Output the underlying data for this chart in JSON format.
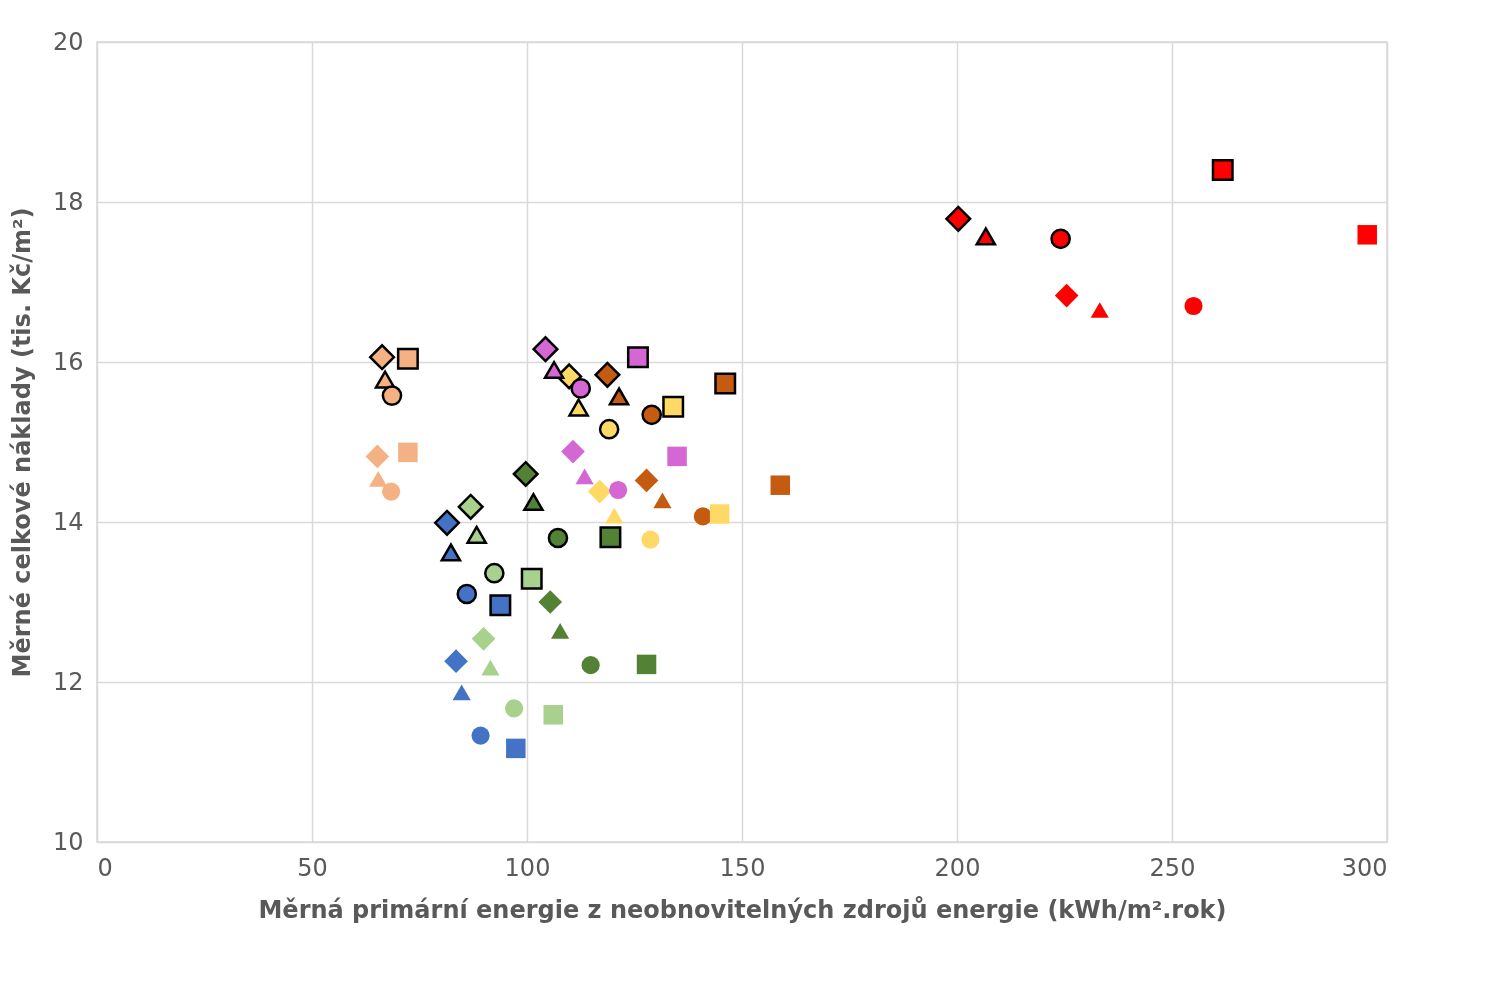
{
  "chart_data": {
    "type": "scatter",
    "xlabel": "Měrná primární energie z neobnovitelných zdrojů energie (kWh/m².rok)",
    "ylabel": "Měrné celkové náklady (tis. Kč/m²)",
    "xlim": [
      0,
      300
    ],
    "xticks": [
      0,
      50,
      100,
      150,
      200,
      250,
      300
    ],
    "ylim": [
      10,
      20
    ],
    "yticks": [
      10,
      12,
      14,
      16,
      18,
      20
    ],
    "grid": true,
    "series": [
      {
        "marker": "diamond",
        "color": "#000000",
        "colors": [
          "#f4b183",
          "#4472c4",
          "#a9d18e",
          "#548235",
          "#d467d4",
          "#ffd966",
          "#c55a11",
          "#ff0000"
        ],
        "x": [
          66.3,
          81.4,
          86.9,
          99.7,
          104.3,
          109.8,
          118.7,
          200.3
        ],
        "values": [
          16.06,
          13.99,
          14.19,
          14.6,
          16.16,
          15.82,
          15.84,
          17.79
        ]
      },
      {
        "marker": "triangle",
        "color": "#000000",
        "colors": [
          "#f4b183",
          "#4472c4",
          "#a9d18e",
          "#548235",
          "#d467d4",
          "#ffd966",
          "#c55a11",
          "#ff0000"
        ],
        "x": [
          67.0,
          82.3,
          88.3,
          101.5,
          106.3,
          112.0,
          121.4,
          206.7
        ],
        "values": [
          15.78,
          13.62,
          13.84,
          14.25,
          15.9,
          15.43,
          15.57,
          17.57
        ]
      },
      {
        "marker": "circle",
        "color": "#000000",
        "colors": [
          "#f4b183",
          "#4472c4",
          "#a9d18e",
          "#548235",
          "#d467d4",
          "#ffd966",
          "#c55a11",
          "#ff0000"
        ],
        "x": [
          68.6,
          86.0,
          92.4,
          107.2,
          112.5,
          119.1,
          129.0,
          224.1
        ],
        "values": [
          15.58,
          13.1,
          13.36,
          13.8,
          15.67,
          15.16,
          15.34,
          17.54
        ]
      },
      {
        "marker": "square",
        "color": "#000000",
        "colors": [
          "#f4b183",
          "#4472c4",
          "#a9d18e",
          "#548235",
          "#d467d4",
          "#ffd966",
          "#c55a11",
          "#ff0000"
        ],
        "x": [
          72.3,
          93.8,
          101.1,
          119.4,
          125.8,
          134.0,
          146.1,
          261.8
        ],
        "values": [
          16.04,
          12.96,
          13.29,
          13.81,
          16.06,
          15.44,
          15.73,
          18.4
        ]
      },
      {
        "marker": "diamond",
        "colors": [
          "#f4b183",
          "#4472c4",
          "#a9d18e",
          "#548235",
          "#d467d4",
          "#ffd966",
          "#c55a11",
          "#ff0000"
        ],
        "x": [
          65.2,
          83.5,
          89.9,
          105.4,
          110.7,
          116.9,
          127.8,
          225.5
        ],
        "values": [
          14.82,
          12.26,
          12.54,
          13.0,
          14.88,
          14.38,
          14.52,
          16.83
        ]
      },
      {
        "marker": "triangle",
        "colors": [
          "#f4b183",
          "#4472c4",
          "#a9d18e",
          "#548235",
          "#d467d4",
          "#ffd966",
          "#c55a11",
          "#ff0000"
        ],
        "x": [
          65.4,
          84.8,
          91.5,
          107.7,
          113.4,
          120.3,
          131.5,
          233.2
        ],
        "values": [
          14.54,
          11.87,
          12.18,
          12.64,
          14.57,
          14.08,
          14.27,
          16.65
        ]
      },
      {
        "marker": "circle",
        "colors": [
          "#f4b183",
          "#4472c4",
          "#a9d18e",
          "#548235",
          "#d467d4",
          "#ffd966",
          "#c55a11",
          "#ff0000"
        ],
        "x": [
          68.4,
          89.2,
          97.0,
          114.8,
          121.2,
          128.7,
          140.9,
          255.0
        ],
        "values": [
          14.38,
          11.33,
          11.67,
          12.21,
          14.4,
          13.78,
          14.07,
          16.7
        ]
      },
      {
        "marker": "square",
        "colors": [
          "#f4b183",
          "#4472c4",
          "#a9d18e",
          "#548235",
          "#d467d4",
          "#ffd966",
          "#c55a11",
          "#ff0000"
        ],
        "x": [
          72.3,
          97.4,
          106.1,
          127.8,
          134.9,
          144.8,
          158.9,
          295.4
        ],
        "values": [
          14.87,
          11.17,
          11.59,
          12.22,
          14.82,
          14.1,
          14.46,
          17.59
        ]
      }
    ]
  }
}
